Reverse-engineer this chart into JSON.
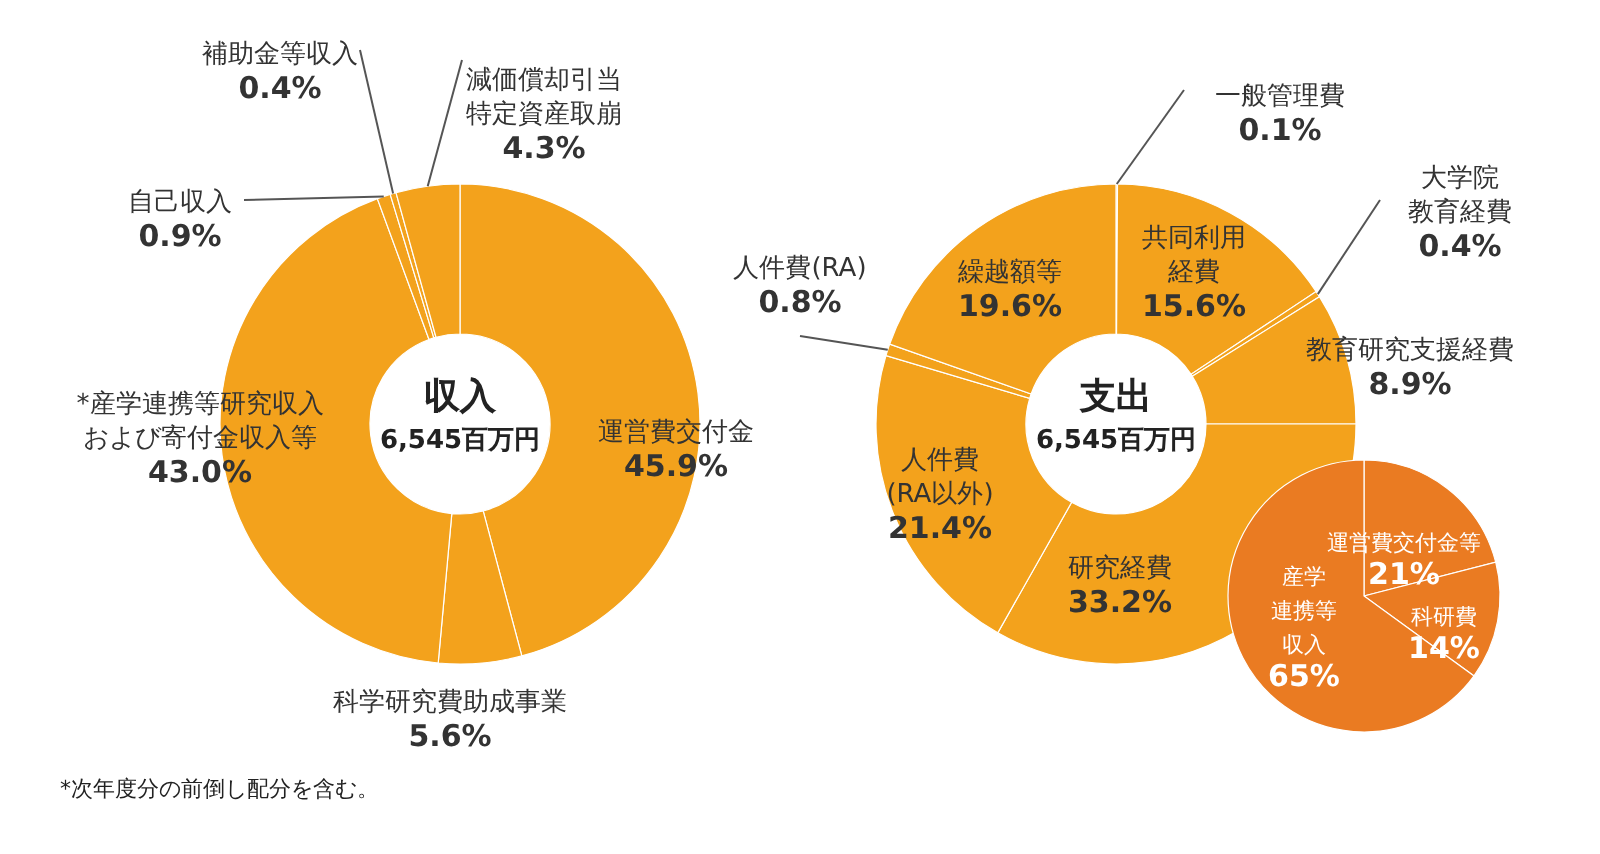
{
  "chart_data": [
    {
      "type": "donut",
      "title": "収入",
      "subtitle": "6,545百万円",
      "categories": [
        "運営費交付金",
        "科学研究費助成事業",
        "*産学連携等研究収入および寄付金収入等",
        "自己収入",
        "補助金等収入",
        "減価償却引当特定資産取崩"
      ],
      "values": [
        45.9,
        5.6,
        43.0,
        0.9,
        0.4,
        4.3
      ],
      "value_labels": [
        "45.9%",
        "5.6%",
        "43.0%",
        "0.9%",
        "0.4%",
        "4.3%"
      ],
      "colors": [
        "#f3a21c",
        "#f3a21c",
        "#f3a21c",
        "#f3a21c",
        "#f3a21c",
        "#f3a21c"
      ],
      "annotations": [
        "*次年度分の前倒し配分を含む。"
      ]
    },
    {
      "type": "donut",
      "title": "支出",
      "subtitle": "6,545百万円",
      "categories": [
        "一般管理費",
        "共同利用経費",
        "大学院教育経費",
        "教育研究支援経費",
        "研究経費",
        "人件費(RA以外)",
        "人件費(RA)",
        "繰越額等"
      ],
      "values": [
        0.1,
        15.6,
        0.4,
        8.9,
        33.2,
        21.4,
        0.8,
        19.6
      ],
      "value_labels": [
        "0.1%",
        "15.6%",
        "0.4%",
        "8.9%",
        "33.2%",
        "21.4%",
        "0.8%",
        "19.6%"
      ],
      "colors": [
        "#f3a21c",
        "#f3a21c",
        "#f3a21c",
        "#f3a21c",
        "#f3a21c",
        "#f3a21c",
        "#f3a21c",
        "#f3a21c"
      ]
    },
    {
      "type": "pie",
      "categories": [
        "運営費交付金等",
        "科研費",
        "産学連携等収入"
      ],
      "values": [
        21,
        14,
        65
      ],
      "value_labels": [
        "21%",
        "14%",
        "65%"
      ],
      "colors": [
        "#ea7b22",
        "#ea7b22",
        "#ea7b22"
      ]
    }
  ]
}
